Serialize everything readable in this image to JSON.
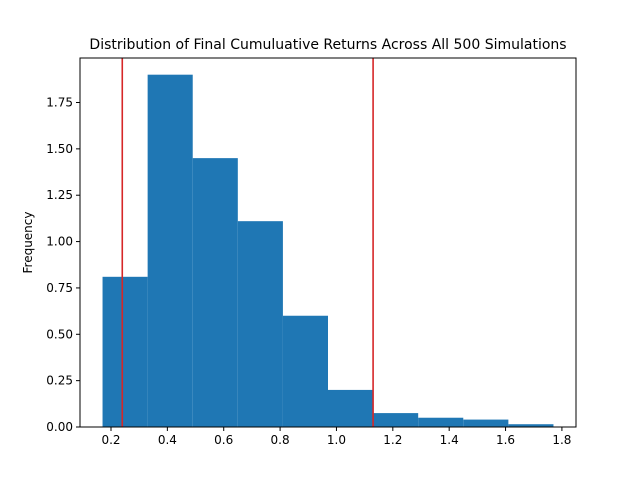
{
  "chart_data": {
    "type": "bar",
    "subtype": "histogram",
    "title": "Distribution of Final Cumuluative Returns Across All 500 Simulations",
    "xlabel": "",
    "ylabel": "Frequency",
    "xlim": [
      0.09,
      1.85
    ],
    "ylim": [
      0,
      1.99
    ],
    "xticks": [
      0.2,
      0.4,
      0.6,
      0.8,
      1.0,
      1.2,
      1.4,
      1.6,
      1.8
    ],
    "xtick_labels": [
      "0.2",
      "0.4",
      "0.6",
      "0.8",
      "1.0",
      "1.2",
      "1.4",
      "1.6",
      "1.8"
    ],
    "yticks": [
      0.0,
      0.25,
      0.5,
      0.75,
      1.0,
      1.25,
      1.5,
      1.75
    ],
    "ytick_labels": [
      "0.00",
      "0.25",
      "0.50",
      "0.75",
      "1.00",
      "1.25",
      "1.50",
      "1.75"
    ],
    "bin_edges": [
      0.17,
      0.33,
      0.49,
      0.65,
      0.81,
      0.97,
      1.13,
      1.29,
      1.45,
      1.61,
      1.77
    ],
    "values": [
      0.81,
      1.9,
      1.45,
      1.11,
      0.6,
      0.2,
      0.075,
      0.05,
      0.04,
      0.015
    ],
    "bar_color": "#1f77b4",
    "vlines": [
      {
        "x": 0.24,
        "color": "#d62728"
      },
      {
        "x": 1.13,
        "color": "#d62728"
      }
    ],
    "grid": false,
    "legend": "none"
  }
}
